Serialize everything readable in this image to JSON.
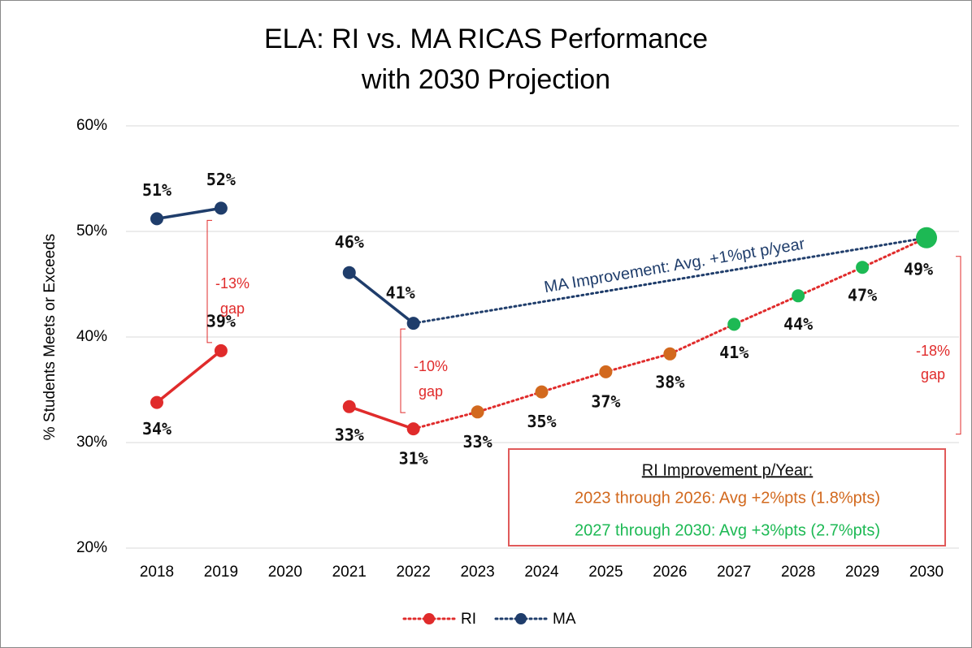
{
  "chart_data": {
    "type": "line",
    "title": [
      "ELA: RI vs. MA RICAS Performance",
      "with 2030 Projection"
    ],
    "y_label": "% Students Meets or Exceeds",
    "categories": [
      "2018",
      "2019",
      "2020",
      "2021",
      "2022",
      "2023",
      "2024",
      "2025",
      "2026",
      "2027",
      "2028",
      "2029",
      "2030"
    ],
    "projected_from": "2022",
    "ylim": [
      20,
      60
    ],
    "yticks": [
      {
        "value": 20,
        "label": "20%"
      },
      {
        "value": 30,
        "label": "30%"
      },
      {
        "value": 40,
        "label": "40%"
      },
      {
        "value": 50,
        "label": "50%"
      },
      {
        "value": 60,
        "label": "60%"
      }
    ],
    "grid": true,
    "legend": "bottom",
    "series": [
      {
        "name": "RI",
        "color": "#e02b2b",
        "values": [
          33.8,
          38.7,
          null,
          33.4,
          31.3,
          32.9,
          34.8,
          36.7,
          38.4,
          41.2,
          43.9,
          46.6,
          49.4
        ],
        "value_labels": [
          "34%",
          "39%",
          null,
          "33%",
          "31%",
          "33%",
          "35%",
          "37%",
          "38%",
          "41%",
          "44%",
          "47%",
          "49%"
        ],
        "marker_colors": [
          "#e02b2b",
          "#e02b2b",
          null,
          "#e02b2b",
          "#e02b2b",
          "#d2691e",
          "#d2691e",
          "#d2691e",
          "#d2691e",
          "#1db954",
          "#1db954",
          "#1db954",
          "#1db954"
        ]
      },
      {
        "name": "MA",
        "color": "#1f3d6b",
        "values": [
          51.2,
          52.2,
          null,
          46.1,
          41.3,
          null,
          null,
          null,
          null,
          null,
          null,
          null,
          49.4
        ],
        "value_labels": [
          "51%",
          "52%",
          null,
          "46%",
          "41%",
          null,
          null,
          null,
          null,
          null,
          null,
          null,
          null
        ]
      }
    ],
    "annotations": [
      {
        "text": [
          "-13%",
          "gap"
        ],
        "color": "#e02b2b"
      },
      {
        "text": [
          "-10%",
          "gap"
        ],
        "color": "#e02b2b"
      },
      {
        "text": [
          "-18%",
          "gap"
        ],
        "color": "#e02b2b"
      },
      {
        "text": [
          "MA Improvement: Avg. +1%pt p/year"
        ],
        "color": "#1f3d6b"
      }
    ],
    "box": {
      "title": "RI Improvement p/Year:",
      "lines": [
        {
          "text": "2023 through 2026:  Avg +2%pts (1.8%pts)",
          "color": "#d2691e"
        },
        {
          "text": "2027 through 2030:  Avg +3%pts (2.7%pts)",
          "color": "#1db954"
        }
      ],
      "border": "#e05a5a"
    }
  }
}
